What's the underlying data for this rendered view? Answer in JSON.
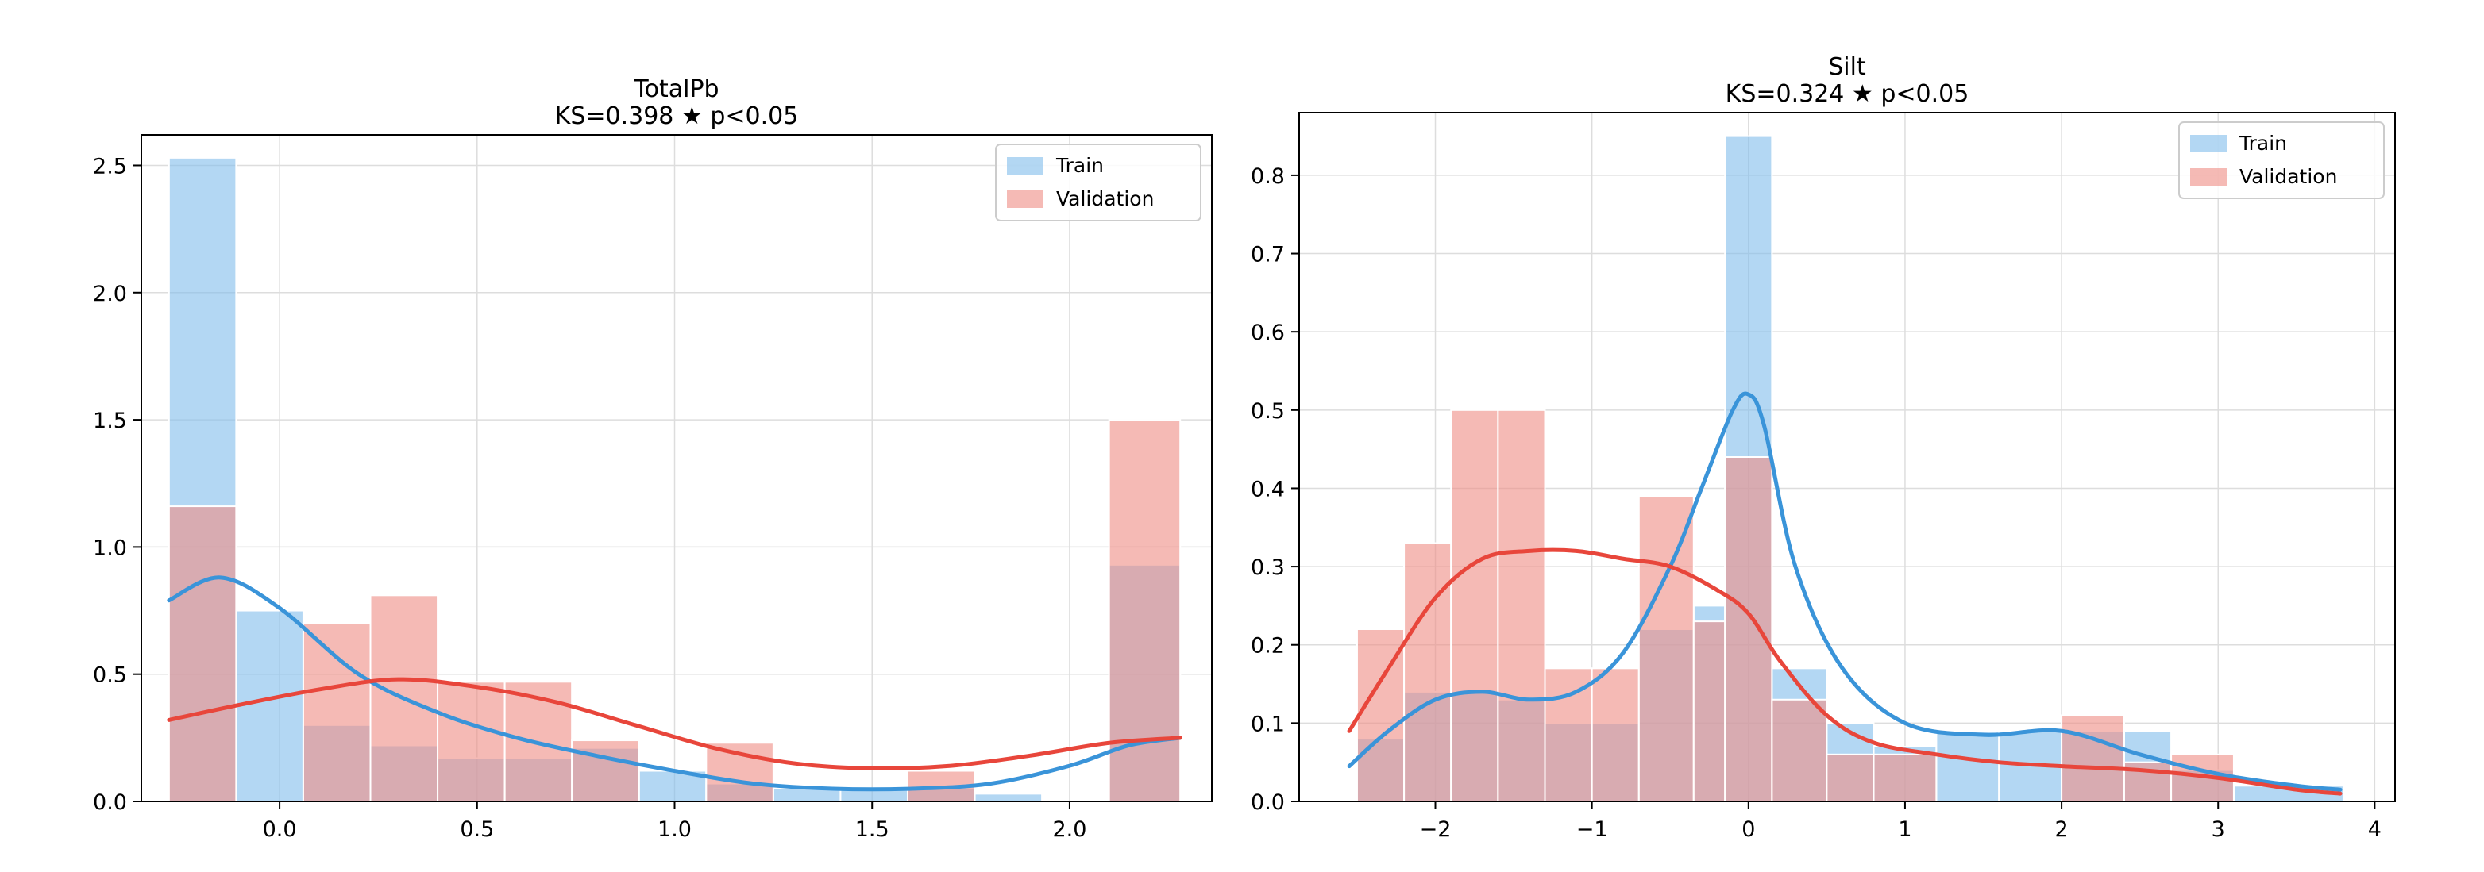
{
  "chart_data": [
    {
      "type": "bar",
      "title": "TotalPb",
      "subtitle": "KS=0.398  ★ p<0.05",
      "xlabel": "",
      "ylabel": "",
      "xlim": [
        -0.35,
        2.36
      ],
      "ylim": [
        0,
        2.62
      ],
      "grid": true,
      "legend_placement": "top-right",
      "x_ticks": [
        0.0,
        0.5,
        1.0,
        1.5,
        2.0
      ],
      "x_tick_labels": [
        "0.0",
        "0.5",
        "1.0",
        "1.5",
        "2.0"
      ],
      "y_ticks": [
        0.0,
        0.5,
        1.0,
        1.5,
        2.0,
        2.5
      ],
      "y_tick_labels": [
        "0.0",
        "0.5",
        "1.0",
        "1.5",
        "2.0",
        "2.5"
      ],
      "series": [
        {
          "name": "Train",
          "color": "#85bfeb",
          "line_color": "#3a94d9",
          "bins": [
            [
              -0.28,
              -0.11
            ],
            [
              -0.11,
              0.06
            ],
            [
              0.06,
              0.23
            ],
            [
              0.23,
              0.4
            ],
            [
              0.4,
              0.57
            ],
            [
              0.57,
              0.74
            ],
            [
              0.74,
              0.91
            ],
            [
              0.91,
              1.08
            ],
            [
              1.08,
              1.25
            ],
            [
              1.25,
              1.42
            ],
            [
              1.42,
              1.59
            ],
            [
              1.59,
              1.76
            ],
            [
              1.76,
              1.93
            ],
            [
              1.93,
              2.1
            ],
            [
              2.1,
              2.28
            ]
          ],
          "values": [
            2.53,
            0.75,
            0.3,
            0.22,
            0.17,
            0.17,
            0.21,
            0.12,
            0.07,
            0.05,
            0.05,
            0.05,
            0.03,
            0.0,
            0.93
          ],
          "kde_x": [
            -0.28,
            -0.15,
            0.0,
            0.2,
            0.4,
            0.6,
            0.8,
            1.0,
            1.2,
            1.4,
            1.6,
            1.8,
            2.0,
            2.15,
            2.28
          ],
          "kde_y": [
            0.79,
            0.88,
            0.76,
            0.5,
            0.35,
            0.25,
            0.18,
            0.12,
            0.07,
            0.05,
            0.05,
            0.07,
            0.14,
            0.22,
            0.25
          ]
        },
        {
          "name": "Validation",
          "color": "#ef8f88",
          "line_color": "#e8463b",
          "bins": [
            [
              -0.28,
              -0.11
            ],
            [
              -0.11,
              0.06
            ],
            [
              0.06,
              0.23
            ],
            [
              0.23,
              0.4
            ],
            [
              0.4,
              0.57
            ],
            [
              0.57,
              0.74
            ],
            [
              0.74,
              0.91
            ],
            [
              0.91,
              1.08
            ],
            [
              1.08,
              1.25
            ],
            [
              1.25,
              1.42
            ],
            [
              1.42,
              1.59
            ],
            [
              1.59,
              1.76
            ],
            [
              1.76,
              1.93
            ],
            [
              1.93,
              2.1
            ],
            [
              2.1,
              2.28
            ]
          ],
          "values": [
            1.16,
            0.0,
            0.7,
            0.81,
            0.47,
            0.47,
            0.24,
            0.0,
            0.23,
            0.0,
            0.0,
            0.12,
            0.0,
            0.0,
            1.5
          ],
          "kde_x": [
            -0.28,
            -0.1,
            0.1,
            0.3,
            0.5,
            0.7,
            0.9,
            1.1,
            1.3,
            1.5,
            1.7,
            1.9,
            2.1,
            2.28
          ],
          "kde_y": [
            0.32,
            0.38,
            0.44,
            0.48,
            0.45,
            0.39,
            0.3,
            0.21,
            0.15,
            0.13,
            0.14,
            0.18,
            0.23,
            0.25
          ]
        }
      ]
    },
    {
      "type": "bar",
      "title": "Silt",
      "subtitle": "KS=0.324  ★ p<0.05",
      "xlabel": "",
      "ylabel": "",
      "xlim": [
        -2.87,
        4.13
      ],
      "ylim": [
        0,
        0.88
      ],
      "grid": true,
      "legend_placement": "top-right",
      "x_ticks": [
        -2,
        -1,
        0,
        1,
        2,
        3,
        4
      ],
      "x_tick_labels": [
        "−2",
        "−1",
        "0",
        "1",
        "2",
        "3",
        "4"
      ],
      "y_ticks": [
        0.0,
        0.1,
        0.2,
        0.3,
        0.4,
        0.5,
        0.6,
        0.7,
        0.8
      ],
      "y_tick_labels": [
        "0.0",
        "0.1",
        "0.2",
        "0.3",
        "0.4",
        "0.5",
        "0.6",
        "0.7",
        "0.8"
      ],
      "series": [
        {
          "name": "Train",
          "color": "#85bfeb",
          "line_color": "#3a94d9",
          "bins": [
            [
              -2.5,
              -2.2
            ],
            [
              -2.2,
              -1.9
            ],
            [
              -1.9,
              -1.6
            ],
            [
              -1.6,
              -1.3
            ],
            [
              -1.3,
              -1.0
            ],
            [
              -1.0,
              -0.7
            ],
            [
              -0.7,
              -0.35
            ],
            [
              -0.35,
              -0.15
            ],
            [
              -0.15,
              0.15
            ],
            [
              0.15,
              0.5
            ],
            [
              0.5,
              0.8
            ],
            [
              0.8,
              1.2
            ],
            [
              1.2,
              1.6
            ],
            [
              1.6,
              2.0
            ],
            [
              2.0,
              2.4
            ],
            [
              2.4,
              2.7
            ],
            [
              2.7,
              3.1
            ],
            [
              3.1,
              3.8
            ]
          ],
          "values": [
            0.08,
            0.14,
            0.14,
            0.13,
            0.1,
            0.1,
            0.22,
            0.25,
            0.85,
            0.17,
            0.1,
            0.07,
            0.09,
            0.09,
            0.09,
            0.09,
            0.04,
            0.02
          ],
          "kde_x": [
            -2.55,
            -2.3,
            -2.0,
            -1.7,
            -1.4,
            -1.1,
            -0.8,
            -0.5,
            -0.3,
            -0.1,
            0.0,
            0.1,
            0.3,
            0.6,
            1.0,
            1.5,
            2.0,
            2.5,
            3.0,
            3.5,
            3.78
          ],
          "kde_y": [
            0.045,
            0.09,
            0.13,
            0.14,
            0.13,
            0.14,
            0.19,
            0.3,
            0.4,
            0.5,
            0.52,
            0.48,
            0.3,
            0.17,
            0.1,
            0.085,
            0.09,
            0.06,
            0.035,
            0.02,
            0.015
          ]
        },
        {
          "name": "Validation",
          "color": "#ef8f88",
          "line_color": "#e8463b",
          "bins": [
            [
              -2.5,
              -2.2
            ],
            [
              -2.2,
              -1.9
            ],
            [
              -1.9,
              -1.6
            ],
            [
              -1.6,
              -1.3
            ],
            [
              -1.3,
              -1.0
            ],
            [
              -1.0,
              -0.7
            ],
            [
              -0.7,
              -0.35
            ],
            [
              -0.35,
              -0.15
            ],
            [
              -0.15,
              0.15
            ],
            [
              0.15,
              0.5
            ],
            [
              0.5,
              0.8
            ],
            [
              0.8,
              1.2
            ],
            [
              1.2,
              1.6
            ],
            [
              1.6,
              2.0
            ],
            [
              2.0,
              2.4
            ],
            [
              2.4,
              2.7
            ],
            [
              2.7,
              3.1
            ],
            [
              3.1,
              3.8
            ]
          ],
          "values": [
            0.22,
            0.33,
            0.5,
            0.5,
            0.17,
            0.17,
            0.39,
            0.23,
            0.44,
            0.13,
            0.06,
            0.06,
            0.0,
            0.0,
            0.11,
            0.05,
            0.06,
            0.0
          ],
          "kde_x": [
            -2.55,
            -2.3,
            -2.0,
            -1.7,
            -1.4,
            -1.1,
            -0.8,
            -0.5,
            -0.2,
            0.0,
            0.2,
            0.5,
            0.8,
            1.2,
            1.6,
            2.0,
            2.5,
            3.0,
            3.5,
            3.78
          ],
          "kde_y": [
            0.09,
            0.17,
            0.26,
            0.31,
            0.32,
            0.32,
            0.31,
            0.3,
            0.27,
            0.24,
            0.18,
            0.11,
            0.075,
            0.06,
            0.05,
            0.045,
            0.04,
            0.03,
            0.015,
            0.01
          ]
        }
      ]
    }
  ]
}
